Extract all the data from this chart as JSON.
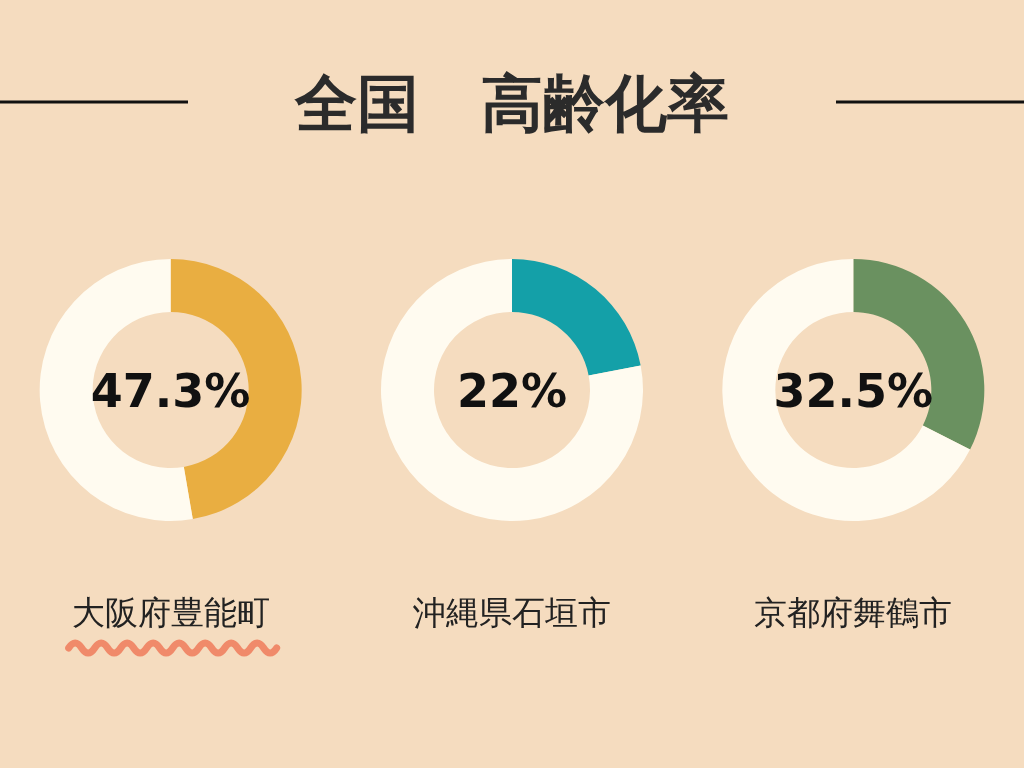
{
  "chart_data": [
    {
      "type": "donut",
      "xlabel": "大阪府豊能町",
      "categories": [
        null,
        null
      ],
      "values": [
        47.3,
        52.7
      ],
      "colors": [
        "#e9ae41",
        "#fffbf0"
      ],
      "annotations": [
        "47.3%"
      ]
    },
    {
      "type": "donut",
      "title": "全国　高齢化率",
      "xlabel": "沖縄県石垣市",
      "categories": [
        null,
        null
      ],
      "values": [
        22,
        78
      ],
      "colors": [
        "#14a0a8",
        "#fffbf0"
      ],
      "annotations": [
        "22%"
      ]
    },
    {
      "type": "donut",
      "xlabel": "京都府舞鶴市",
      "categories": [
        null,
        null
      ],
      "values": [
        32.5,
        67.5
      ],
      "colors": [
        "#6a9160",
        "#fffbf0"
      ],
      "annotations": [
        "32.5%"
      ]
    }
  ]
}
